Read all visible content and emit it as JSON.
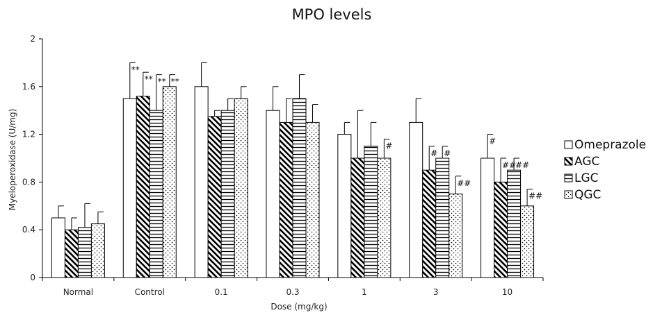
{
  "chart_data": {
    "type": "bar",
    "title": "MPO levels",
    "xlabel": "Dose (mg/kg)",
    "ylabel": "Myeloperoxidase (U/mg)",
    "ylim": [
      0,
      2
    ],
    "yticks": [
      "0",
      "0.4",
      "0.8",
      "1.2",
      "1.6",
      "2"
    ],
    "categories": [
      "Normal",
      "Control",
      "0.1",
      "0.3",
      "1",
      "3",
      "10"
    ],
    "grid": false,
    "legend_position": "right",
    "series": [
      {
        "name": "Omeprazole",
        "pattern": "empty",
        "values": [
          0.5,
          1.5,
          1.6,
          1.4,
          1.2,
          1.3,
          1.0
        ],
        "errors": [
          0.1,
          0.3,
          0.2,
          0.2,
          0.1,
          0.2,
          0.2
        ],
        "annotations": [
          "",
          "**",
          "",
          "",
          "",
          "",
          "#"
        ]
      },
      {
        "name": "AGC",
        "pattern": "diagonal",
        "values": [
          0.4,
          1.52,
          1.35,
          1.3,
          1.0,
          0.9,
          0.8
        ],
        "errors": [
          0.1,
          0.2,
          0.05,
          0.2,
          0.4,
          0.2,
          0.2
        ],
        "annotations": [
          "",
          "**",
          "",
          "",
          "",
          "#",
          "##"
        ]
      },
      {
        "name": "LGC",
        "pattern": "horizontal",
        "values": [
          0.42,
          1.4,
          1.4,
          1.5,
          1.1,
          1.0,
          0.9
        ],
        "errors": [
          0.2,
          0.3,
          0.1,
          0.2,
          0.2,
          0.1,
          0.1
        ],
        "annotations": [
          "",
          "**",
          "",
          "",
          "",
          "#",
          "##"
        ]
      },
      {
        "name": "QGC",
        "pattern": "dotted",
        "values": [
          0.45,
          1.6,
          1.5,
          1.3,
          1.0,
          0.7,
          0.6
        ],
        "errors": [
          0.1,
          0.1,
          0.1,
          0.15,
          0.16,
          0.15,
          0.14
        ],
        "annotations": [
          "",
          "**",
          "",
          "",
          "#",
          "##",
          "##"
        ]
      }
    ]
  }
}
